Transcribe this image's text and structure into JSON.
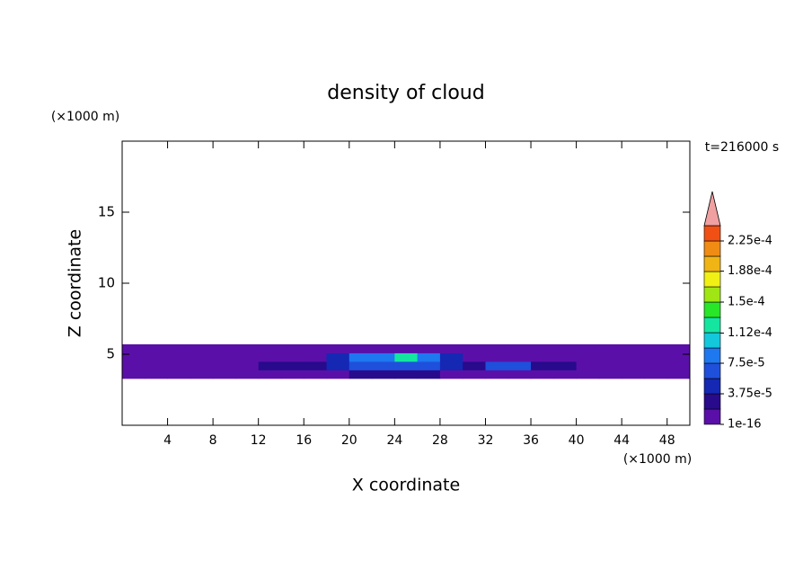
{
  "chart_data": {
    "type": "contour",
    "title": "density of cloud",
    "xlabel": "X coordinate",
    "ylabel": "Z coordinate",
    "xunit": "(×1000 m)",
    "yunit": "(×1000 m)",
    "time_label": "t=216000 s",
    "xlim": [
      0,
      50
    ],
    "ylim": [
      0,
      20
    ],
    "xticks": [
      4,
      8,
      12,
      16,
      20,
      24,
      28,
      32,
      36,
      40,
      44,
      48
    ],
    "yticks": [
      5,
      10,
      15
    ],
    "x_edges": [
      0,
      2,
      4,
      6,
      8,
      10,
      12,
      14,
      16,
      18,
      20,
      22,
      24,
      26,
      28,
      30,
      32,
      34,
      36,
      38,
      40,
      42,
      44,
      46,
      48,
      50
    ],
    "y_edges": [
      3.3,
      3.9,
      4.5,
      5.1,
      5.7
    ],
    "z": [
      [
        1e-05,
        1e-05,
        1e-05,
        1e-05,
        1e-05,
        1e-05,
        1e-05,
        1e-05,
        1e-05,
        1e-05,
        2.5e-05,
        2.5e-05,
        2.5e-05,
        2.5e-05,
        1e-05,
        1e-05,
        1e-05,
        1e-05,
        1e-05,
        1e-05,
        1e-05,
        1e-05,
        1e-05,
        1e-05,
        1e-05
      ],
      [
        1e-05,
        1e-05,
        1e-05,
        1e-05,
        1e-05,
        1e-05,
        2.5e-05,
        2.5e-05,
        2.5e-05,
        4e-05,
        6e-05,
        6e-05,
        6e-05,
        6e-05,
        4e-05,
        2.5e-05,
        6e-05,
        6e-05,
        2.5e-05,
        2.5e-05,
        1e-05,
        1e-05,
        1e-05,
        1e-05,
        1e-05
      ],
      [
        1e-05,
        1e-05,
        1e-05,
        1e-05,
        1e-05,
        1e-05,
        1e-05,
        1e-05,
        1e-05,
        4e-05,
        9e-05,
        9e-05,
        0.00012,
        9e-05,
        4e-05,
        1e-05,
        1e-05,
        1e-05,
        1e-05,
        1e-05,
        1e-05,
        1e-05,
        1e-05,
        1e-05,
        1e-05
      ],
      [
        1e-05,
        1e-05,
        1e-05,
        1e-05,
        1e-05,
        1e-05,
        1e-05,
        1e-05,
        1e-05,
        1e-05,
        1e-05,
        1e-05,
        1e-05,
        1e-05,
        1e-05,
        1e-05,
        1e-05,
        1e-05,
        1e-05,
        1e-05,
        1e-05,
        1e-05,
        1e-05,
        1e-05,
        1e-05
      ]
    ],
    "colorbar": {
      "clim": [
        1e-16,
        0.00024375
      ],
      "colors": [
        "#5a10a8",
        "#280a8c",
        "#1428b4",
        "#1e50dc",
        "#1e78f0",
        "#14c8dc",
        "#14e6a0",
        "#28e628",
        "#a0e614",
        "#f0f014",
        "#f0b414",
        "#f08c14",
        "#f05014"
      ],
      "extend_color": "#f0a0a0",
      "ticks": [
        {
          "value": 1e-16,
          "label": "1e-16"
        },
        {
          "value": 3.75e-05,
          "label": "3.75e-5"
        },
        {
          "value": 7.5e-05,
          "label": "7.5e-5"
        },
        {
          "value": 0.000112,
          "label": "1.12e-4"
        },
        {
          "value": 0.00015,
          "label": "1.5e-4"
        },
        {
          "value": 0.000188,
          "label": "1.88e-4"
        },
        {
          "value": 0.000225,
          "label": "2.25e-4"
        }
      ]
    }
  }
}
